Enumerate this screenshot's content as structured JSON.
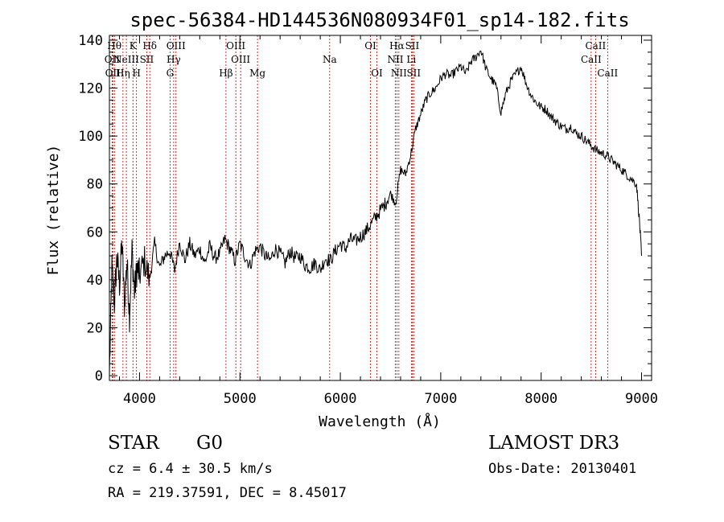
{
  "chart_data": {
    "type": "line",
    "title": "spec-56384-HD144536N080934F01_sp14-182.fits",
    "xlabel": "Wavelength (Å)",
    "ylabel": "Flux (relative)",
    "xlim": [
      3700,
      9100
    ],
    "ylim": [
      -2,
      142
    ],
    "xticks": [
      4000,
      5000,
      6000,
      7000,
      8000,
      9000
    ],
    "yticks": [
      0,
      20,
      40,
      60,
      80,
      100,
      120,
      140
    ],
    "series": [
      {
        "name": "flux",
        "x": [
          3700,
          3725,
          3750,
          3775,
          3800,
          3825,
          3850,
          3875,
          3900,
          3925,
          3950,
          3975,
          4000,
          4050,
          4100,
          4150,
          4200,
          4250,
          4300,
          4350,
          4400,
          4450,
          4500,
          4550,
          4600,
          4650,
          4700,
          4750,
          4800,
          4850,
          4900,
          4950,
          5000,
          5050,
          5100,
          5150,
          5200,
          5250,
          5300,
          5350,
          5400,
          5450,
          5500,
          5550,
          5600,
          5650,
          5700,
          5750,
          5800,
          5850,
          5900,
          5950,
          6000,
          6050,
          6100,
          6150,
          6200,
          6250,
          6300,
          6350,
          6400,
          6450,
          6500,
          6550,
          6600,
          6650,
          6700,
          6750,
          6800,
          6850,
          6900,
          6950,
          7000,
          7050,
          7100,
          7150,
          7200,
          7250,
          7300,
          7350,
          7400,
          7450,
          7500,
          7550,
          7600,
          7650,
          7700,
          7750,
          7800,
          7850,
          7900,
          7950,
          8000,
          8050,
          8100,
          8150,
          8200,
          8250,
          8300,
          8350,
          8400,
          8450,
          8500,
          8550,
          8600,
          8650,
          8700,
          8750,
          8800,
          8850,
          8900,
          8950,
          8980,
          9000
        ],
        "y": [
          0,
          45,
          30,
          50,
          38,
          55,
          30,
          48,
          25,
          52,
          35,
          45,
          42,
          48,
          40,
          55,
          45,
          50,
          52,
          44,
          56,
          48,
          55,
          50,
          53,
          47,
          54,
          49,
          51,
          57,
          53,
          48,
          55,
          50,
          46,
          52,
          54,
          50,
          48,
          53,
          51,
          47,
          52,
          49,
          50,
          46,
          45,
          47,
          44,
          49,
          48,
          52,
          55,
          53,
          57,
          56,
          58,
          60,
          63,
          66,
          69,
          72,
          76,
          72,
          86,
          84,
          92,
          103,
          109,
          115,
          118,
          120,
          124,
          126,
          125,
          127,
          129,
          126,
          131,
          133,
          136,
          128,
          124,
          121,
          110,
          118,
          123,
          126,
          129,
          122,
          117,
          114,
          112,
          111,
          108,
          106,
          104,
          103,
          104,
          101,
          100,
          98,
          96,
          94,
          93,
          92,
          90,
          88,
          86,
          84,
          82,
          80,
          64,
          50
        ]
      }
    ],
    "lines": [
      {
        "wavelength": 3727,
        "label": "OII",
        "row": 2
      },
      {
        "wavelength": 3734,
        "label": "OII",
        "row": 3
      },
      {
        "wavelength": 3750,
        "label": "Hθ",
        "row": 1
      },
      {
        "wavelength": 3835,
        "label": "Hη",
        "row": 3
      },
      {
        "wavelength": 3869,
        "label": "NeIII",
        "row": 2
      },
      {
        "wavelength": 3934,
        "label": "K",
        "row": 1
      },
      {
        "wavelength": 3970,
        "label": "H",
        "row": 3
      },
      {
        "wavelength": 4072,
        "label": "SII",
        "row": 2
      },
      {
        "wavelength": 4102,
        "label": "Hδ",
        "row": 1
      },
      {
        "wavelength": 4304,
        "label": "G",
        "row": 3
      },
      {
        "wavelength": 4340,
        "label": "Hγ",
        "row": 2
      },
      {
        "wavelength": 4363,
        "label": "OIII",
        "row": 1
      },
      {
        "wavelength": 4861,
        "label": "Hβ",
        "row": 3
      },
      {
        "wavelength": 4959,
        "label": "OIII",
        "row": 1
      },
      {
        "wavelength": 5007,
        "label": "OIII",
        "row": 2
      },
      {
        "wavelength": 5175,
        "label": "Mg",
        "row": 3
      },
      {
        "wavelength": 5894,
        "label": "Na",
        "row": 2
      },
      {
        "wavelength": 6300,
        "label": "OI",
        "row": 1
      },
      {
        "wavelength": 6364,
        "label": "OI",
        "row": 3
      },
      {
        "wavelength": 6548,
        "label": "NII",
        "row": 2
      },
      {
        "wavelength": 6563,
        "label": "Hα",
        "row": 1
      },
      {
        "wavelength": 6583,
        "label": "NII",
        "row": 3
      },
      {
        "wavelength": 6707,
        "label": "Li",
        "row": 2
      },
      {
        "wavelength": 6716,
        "label": "SII",
        "row": 1
      },
      {
        "wavelength": 6731,
        "label": "SII",
        "row": 3
      },
      {
        "wavelength": 8498,
        "label": "CaII",
        "row": 2
      },
      {
        "wavelength": 8542,
        "label": "CaII",
        "row": 1
      },
      {
        "wavelength": 8662,
        "label": "CaII",
        "row": 3
      }
    ]
  },
  "info": {
    "object_class": "STAR",
    "subclass": "G0",
    "redshift_text": "cz = 6.4 ± 30.5 km/s",
    "coords_text": "RA = 219.37591, DEC =   8.45017",
    "survey": "LAMOST DR3",
    "obs_date": "Obs-Date: 20130401"
  },
  "colors": {
    "axes": "#000000",
    "spectrum": "#000000",
    "line_markers": "#c00000"
  }
}
